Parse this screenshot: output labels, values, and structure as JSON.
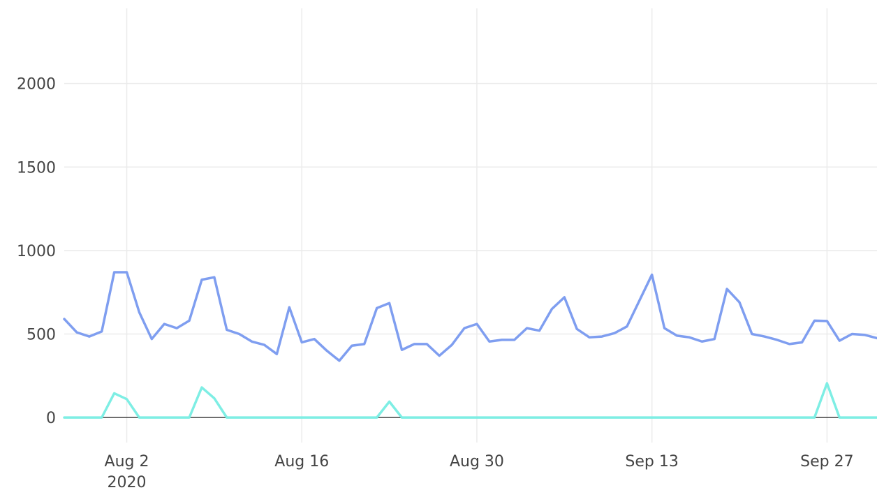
{
  "chart_data": {
    "type": "line",
    "title": "",
    "xlabel": "",
    "ylabel": "",
    "x_start": "2020-07-28",
    "x_range": [
      "2020-07-28",
      "2020-10-01"
    ],
    "ylim": [
      -150,
      2450
    ],
    "y_ticks": [
      {
        "value": 0,
        "label": "0"
      },
      {
        "value": 500,
        "label": "500"
      },
      {
        "value": 1000,
        "label": "1000"
      },
      {
        "value": 1500,
        "label": "1500"
      },
      {
        "value": 2000,
        "label": "2000"
      }
    ],
    "x_ticks": [
      {
        "date": "2020-08-02",
        "label": "Aug 2",
        "sublabel": "2020"
      },
      {
        "date": "2020-08-16",
        "label": "Aug 16",
        "sublabel": ""
      },
      {
        "date": "2020-08-30",
        "label": "Aug 30",
        "sublabel": ""
      },
      {
        "date": "2020-09-13",
        "label": "Sep 13",
        "sublabel": ""
      },
      {
        "date": "2020-09-27",
        "label": "Sep 27",
        "sublabel": ""
      }
    ],
    "grid": true,
    "zero_line_color": "#444444",
    "series": [
      {
        "color": "#7f9ef0",
        "values": [
          590,
          510,
          485,
          515,
          870,
          870,
          630,
          470,
          560,
          535,
          580,
          825,
          840,
          525,
          500,
          455,
          435,
          380,
          660,
          450,
          470,
          400,
          340,
          430,
          440,
          655,
          685,
          405,
          440,
          440,
          370,
          435,
          535,
          560,
          455,
          465,
          465,
          535,
          520,
          650,
          720,
          530,
          480,
          485,
          505,
          545,
          700,
          855,
          535,
          490,
          480,
          455,
          470,
          770,
          690,
          500,
          485,
          465,
          440,
          450,
          580,
          578,
          460,
          500,
          495,
          475
        ]
      },
      {
        "color": "#7eeee4",
        "values": [
          0,
          0,
          0,
          0,
          145,
          110,
          0,
          0,
          0,
          0,
          0,
          180,
          115,
          0,
          0,
          0,
          0,
          0,
          0,
          0,
          0,
          0,
          0,
          0,
          0,
          0,
          95,
          0,
          0,
          0,
          0,
          0,
          0,
          0,
          0,
          0,
          0,
          0,
          0,
          0,
          0,
          0,
          0,
          0,
          0,
          0,
          0,
          0,
          0,
          0,
          0,
          0,
          0,
          0,
          0,
          0,
          0,
          0,
          0,
          0,
          0,
          205,
          0,
          0,
          0,
          0
        ]
      }
    ]
  }
}
